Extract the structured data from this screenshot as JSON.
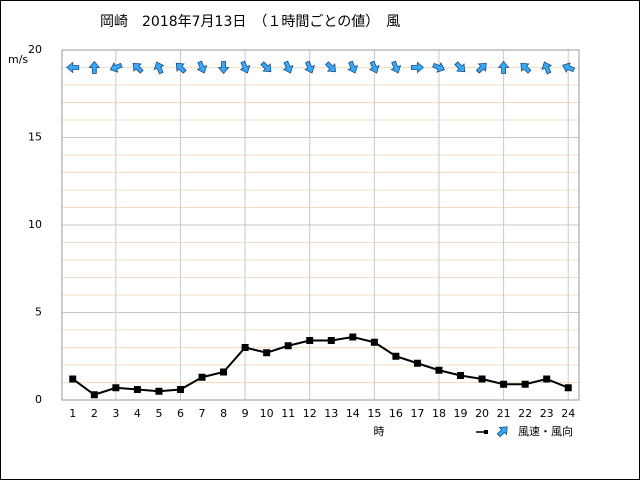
{
  "chart_data": {
    "type": "line",
    "title": "岡崎　2018年7月13日　（１時間ごとの値）　風",
    "y_unit": "m/s",
    "x_label": "時",
    "legend": "風速・風向",
    "x": [
      1,
      2,
      3,
      4,
      5,
      6,
      7,
      8,
      9,
      10,
      11,
      12,
      13,
      14,
      15,
      16,
      17,
      18,
      19,
      20,
      21,
      22,
      23,
      24
    ],
    "values": [
      1.2,
      0.3,
      0.7,
      0.6,
      0.5,
      0.6,
      1.3,
      1.6,
      3.0,
      2.7,
      3.1,
      3.4,
      3.4,
      3.6,
      3.3,
      2.5,
      2.1,
      1.7,
      1.4,
      1.2,
      0.9,
      0.9,
      1.2,
      0.7
    ],
    "directions": [
      270,
      0,
      247.5,
      315,
      337.5,
      315,
      157.5,
      180,
      157.5,
      135,
      157.5,
      157.5,
      135,
      157.5,
      157.5,
      157.5,
      90,
      112.5,
      135,
      45,
      0,
      315,
      337.5,
      292.5
    ],
    "color": "#000000",
    "arrow_color": "#33aaff",
    "xlim": [
      0.5,
      24.5
    ],
    "ylim": [
      0,
      20
    ],
    "yticks": [
      0,
      5,
      10,
      15,
      20
    ],
    "xgrid": [
      3,
      6,
      9,
      12,
      15,
      18,
      21,
      24
    ],
    "yminor_step": 1,
    "arrow_row": 19
  }
}
